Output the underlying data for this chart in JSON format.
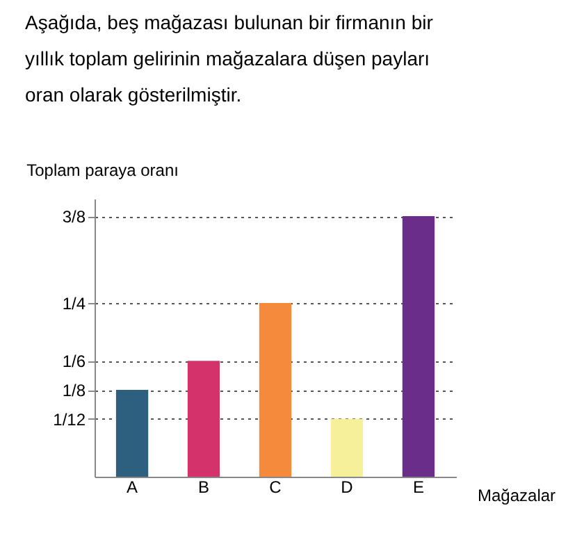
{
  "chart_data": {
    "type": "bar",
    "title": "Aşağıda, beş mağazası bulunan bir firmanın bir yıllık toplam gelirinin mağazalara düşen payları oran olarak gösterilmiştir.",
    "xlabel": "Mağazalar",
    "ylabel": "Toplam paraya oranı",
    "categories": [
      "A",
      "B",
      "C",
      "D",
      "E"
    ],
    "values": [
      0.125,
      0.1667,
      0.25,
      0.0833,
      0.375
    ],
    "colors": [
      "#2d5f7e",
      "#d3336a",
      "#f58a3c",
      "#f6f09a",
      "#6a2d8a"
    ],
    "ylim": [
      0,
      0.4
    ],
    "yticks": [
      {
        "value": 0.0833,
        "label": "1/12"
      },
      {
        "value": 0.125,
        "label": "1/8"
      },
      {
        "value": 0.1667,
        "label": "1/6"
      },
      {
        "value": 0.25,
        "label": "1/4"
      },
      {
        "value": 0.375,
        "label": "3/8"
      }
    ],
    "grid": "y",
    "line_style": "dotted"
  }
}
